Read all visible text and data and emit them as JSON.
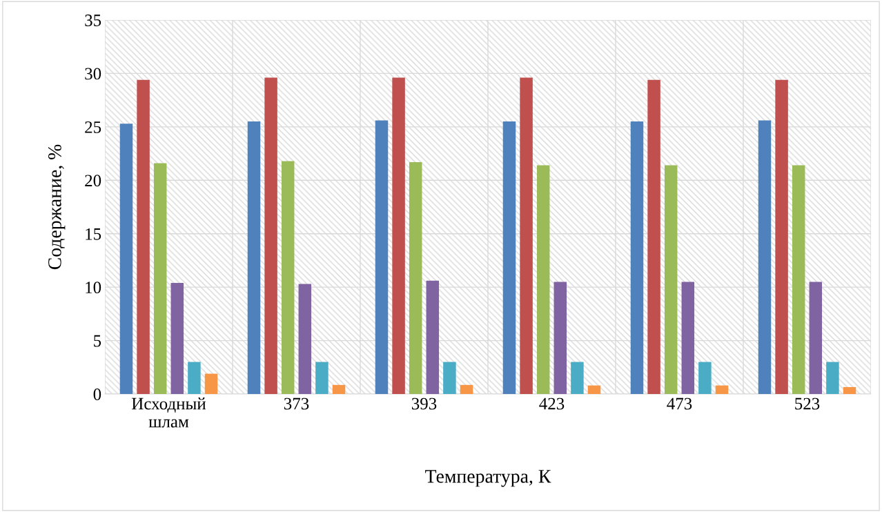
{
  "chart_data": {
    "type": "bar",
    "xlabel": "Температура, К",
    "ylabel": "Содержание, %",
    "categories": [
      "Исходный\nшлам",
      "373",
      "393",
      "423",
      "473",
      "523"
    ],
    "series": [
      {
        "color": "#4f81bd",
        "values": [
          25.3,
          25.5,
          25.6,
          25.5,
          25.5,
          25.6
        ]
      },
      {
        "color": "#c0504d",
        "values": [
          29.4,
          29.6,
          29.6,
          29.6,
          29.4,
          29.4
        ]
      },
      {
        "color": "#9bbb59",
        "values": [
          21.6,
          21.8,
          21.7,
          21.4,
          21.4,
          21.4
        ]
      },
      {
        "color": "#8064a2",
        "values": [
          10.4,
          10.3,
          10.6,
          10.5,
          10.5,
          10.5
        ]
      },
      {
        "color": "#4bacc6",
        "values": [
          3.0,
          3.0,
          3.0,
          3.0,
          3.0,
          3.0
        ]
      },
      {
        "color": "#f79646",
        "values": [
          1.9,
          0.85,
          0.85,
          0.8,
          0.8,
          0.65
        ]
      }
    ],
    "ylim": [
      0,
      35
    ],
    "yticks": [
      0,
      5,
      10,
      15,
      20,
      25,
      30,
      35
    ],
    "grid": true,
    "legend": false
  }
}
